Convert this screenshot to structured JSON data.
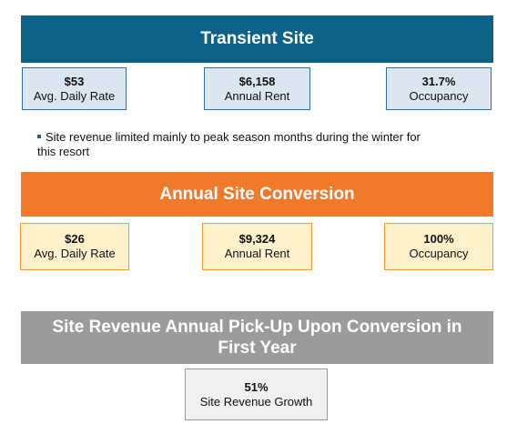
{
  "colors": {
    "transient_banner": "#0d6287",
    "annual_banner": "#f07a2a",
    "pickup_banner": "#9b9b9b"
  },
  "transient_site": {
    "title": "Transient Site",
    "metrics": [
      {
        "value": "$53",
        "label": "Avg. Daily Rate"
      },
      {
        "value": "$6,158",
        "label": "Annual Rent"
      },
      {
        "value": "31.7%",
        "label": "Occupancy"
      }
    ],
    "note_line1": "Site revenue limited mainly to peak season months during the winter for",
    "note_line2": "this resort"
  },
  "annual_conversion": {
    "title": "Annual Site Conversion",
    "metrics": [
      {
        "value": "$26",
        "label": "Avg. Daily Rate"
      },
      {
        "value": "$9,324",
        "label": "Annual Rent"
      },
      {
        "value": "100%",
        "label": "Occupancy"
      }
    ]
  },
  "pickup": {
    "title_line1": "Site Revenue Annual Pick-Up Upon Conversion in",
    "title_line2": "First Year",
    "metric": {
      "value": "51%",
      "label": "Site Revenue Growth"
    }
  }
}
